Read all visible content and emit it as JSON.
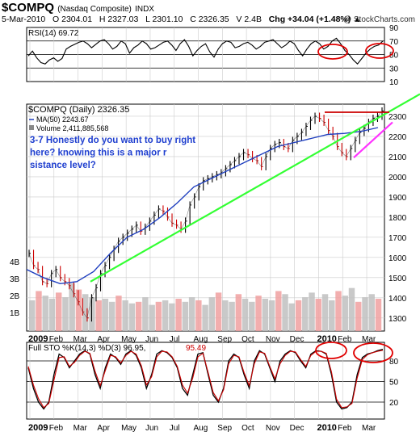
{
  "header": {
    "symbol": "$COMPQ",
    "name": "(Nasdaq Composite)",
    "exchange": "INDX",
    "date": "5-Mar-2010",
    "open": "O 2304.01",
    "high": "H 2327.03",
    "low": "L 2301.10",
    "close": "C 2326.35",
    "volume": "V 2.4B",
    "change": "Chg +34.04 (+1.48%)",
    "change_arrow": "▲",
    "brand": "@ StockCharts.com"
  },
  "chart_data": [
    {
      "type": "line",
      "panel": "rsi",
      "title": "RSI(14) 69.72",
      "value": 69.72,
      "y_ticks": [
        "90",
        "70",
        "50",
        "30",
        "10"
      ],
      "ylim": [
        10,
        90
      ],
      "reference_lines": [
        70,
        50,
        30
      ],
      "series": [
        {
          "values": [
            48,
            55,
            45,
            38,
            36,
            42,
            45,
            40,
            44,
            58,
            62,
            65,
            68,
            70,
            66,
            60,
            65,
            70,
            72,
            66,
            58,
            62,
            70,
            66,
            52,
            60,
            64,
            70,
            66,
            58,
            60,
            64,
            68,
            70,
            64,
            56,
            66,
            72,
            62,
            48,
            56,
            62,
            66,
            54,
            46,
            58,
            66,
            70,
            68,
            60,
            62,
            66,
            68,
            64,
            58,
            62,
            68,
            70,
            72,
            66,
            60,
            64,
            70,
            66,
            56,
            48,
            58,
            66,
            70,
            66,
            58,
            62,
            70,
            74,
            66,
            56,
            50,
            42,
            36,
            44,
            52,
            58,
            62,
            64,
            70
          ]
        }
      ],
      "annotations": [
        "ellipse",
        "ellipse"
      ]
    },
    {
      "type": "line",
      "panel": "price",
      "title": "$COMPQ (Daily) 2326.35",
      "legend": [
        "$COMPQ (Daily) 2326.35",
        "MA(50) 2243.67",
        "Volume 2,411,885,568"
      ],
      "annotation_text": "3-7 Honestly do you want to buy right here? knowing this is a major resistance level?",
      "y_ticks": [
        "2300",
        "2200",
        "2100",
        "2000",
        "1900",
        "1800",
        "1700",
        "1600",
        "1500",
        "1400",
        "1300"
      ],
      "ylim": [
        1235,
        2360
      ],
      "x_ticks": [
        "2009",
        "Feb",
        "Mar",
        "Apr",
        "May",
        "Jun",
        "Jul",
        "Aug",
        "Sep",
        "Oct",
        "Nov",
        "Dec",
        "2010",
        "Feb",
        "Mar"
      ],
      "volume_ticks": [
        "4B",
        "3B",
        "2B",
        "1B"
      ],
      "series": [
        {
          "name": "$COMPQ (Daily)",
          "values": [
            1620,
            1560,
            1540,
            1480,
            1470,
            1520,
            1540,
            1500,
            1480,
            1460,
            1420,
            1380,
            1330,
            1300,
            1400,
            1450,
            1520,
            1560,
            1600,
            1640,
            1680,
            1700,
            1720,
            1740,
            1760,
            1730,
            1750,
            1780,
            1810,
            1840,
            1830,
            1800,
            1770,
            1760,
            1740,
            1780,
            1860,
            1900,
            1950,
            1980,
            1990,
            2000,
            2010,
            2020,
            2040,
            2060,
            2080,
            2100,
            2120,
            2110,
            2090,
            2080,
            2050,
            2100,
            2140,
            2160,
            2170,
            2150,
            2140,
            2180,
            2200,
            2220,
            2250,
            2280,
            2300,
            2290,
            2270,
            2230,
            2200,
            2150,
            2120,
            2100,
            2140,
            2180,
            2220,
            2240,
            2270,
            2290,
            2300,
            2326
          ]
        },
        {
          "name": "MA(50)",
          "values": [
            1540,
            1500,
            1470,
            1480,
            1530,
            1620,
            1700,
            1740,
            1800,
            1870,
            1950,
            1990,
            2030,
            2070,
            2110,
            2150,
            2170,
            2190,
            2210,
            2215,
            2225,
            2244
          ]
        }
      ],
      "volume": [
        2.0,
        2.6,
        2.3,
        2.1,
        2.5,
        2.2,
        3.1,
        2.7,
        2.4,
        2.2,
        2.0,
        2.1,
        1.9,
        2.3,
        2.0,
        1.8,
        1.9,
        2.2,
        1.7,
        1.9,
        2.0,
        1.8,
        2.1,
        1.9,
        2.2,
        2.0,
        1.7,
        2.2,
        2.5,
        2.0,
        1.9,
        2.4,
        2.1,
        1.9,
        2.3,
        2.1,
        2.0,
        2.6,
        2.4,
        1.8,
        2.0,
        2.2,
        2.5,
        2.1,
        2.4,
        2.0,
        2.6,
        2.3,
        2.8,
        1.9,
        2.2,
        2.4,
        2.1
      ]
    },
    {
      "type": "line",
      "panel": "stochastics",
      "title": "Full STO %K(14,3) %D(3) 96.95,",
      "title_d_value": "95.49",
      "y_ticks": [
        "80",
        "50",
        "20"
      ],
      "ylim": [
        0,
        100
      ],
      "reference_lines": [
        80,
        50,
        20
      ],
      "x_ticks": [
        "2009",
        "Feb",
        "Mar",
        "Apr",
        "May",
        "Jun",
        "Jul",
        "Aug",
        "Sep",
        "Oct",
        "Nov",
        "Dec",
        "2010",
        "Feb",
        "Mar"
      ],
      "series": [
        {
          "name": "%K",
          "values": [
            70,
            40,
            20,
            10,
            20,
            60,
            90,
            85,
            70,
            80,
            90,
            95,
            90,
            60,
            40,
            70,
            90,
            85,
            75,
            90,
            95,
            88,
            70,
            40,
            60,
            90,
            95,
            92,
            85,
            70,
            40,
            30,
            60,
            90,
            92,
            60,
            30,
            20,
            40,
            80,
            90,
            85,
            60,
            40,
            80,
            95,
            90,
            70,
            50,
            80,
            90,
            95,
            92,
            80,
            70,
            90,
            95,
            94,
            90,
            60,
            20,
            10,
            12,
            20,
            60,
            85,
            90,
            92,
            95,
            97
          ]
        },
        {
          "name": "%D",
          "values": [
            72,
            45,
            25,
            12,
            18,
            52,
            85,
            86,
            72,
            78,
            88,
            94,
            91,
            65,
            44,
            66,
            88,
            86,
            77,
            88,
            94,
            90,
            73,
            45,
            57,
            86,
            94,
            93,
            86,
            72,
            45,
            33,
            55,
            86,
            91,
            63,
            34,
            22,
            38,
            76,
            88,
            86,
            63,
            44,
            76,
            93,
            91,
            72,
            54,
            76,
            88,
            94,
            93,
            82,
            72,
            88,
            94,
            94,
            91,
            64,
            24,
            12,
            13,
            18,
            55,
            82,
            89,
            92,
            94,
            95.49
          ]
        }
      ],
      "annotations": [
        "ellipse",
        "ellipse"
      ]
    }
  ]
}
